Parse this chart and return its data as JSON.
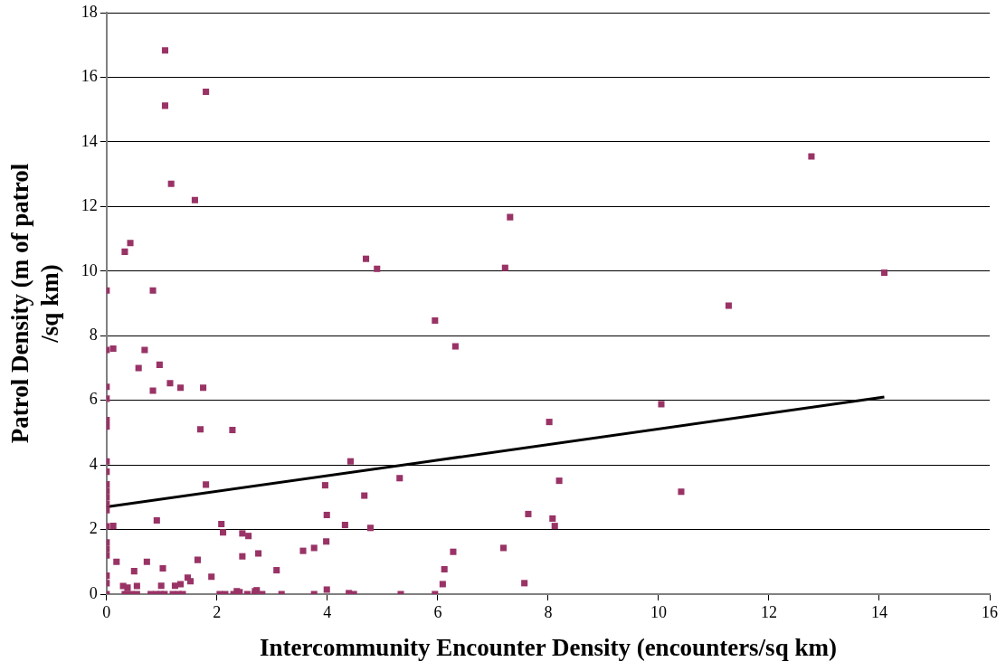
{
  "chart_data": {
    "type": "scatter",
    "xlabel": "Intercommunity Encounter Density (encounters/sq km)",
    "ylabel": "Patrol Density (m of patrol /sq km)",
    "xlim": [
      0,
      16
    ],
    "xticks": [
      0,
      2,
      4,
      6,
      8,
      10,
      12,
      14,
      16
    ],
    "ylim": [
      0,
      18
    ],
    "yticks": [
      0,
      2,
      4,
      6,
      8,
      10,
      12,
      14,
      16,
      18
    ],
    "grid": "y",
    "legend": false,
    "marker": "square",
    "series": [
      {
        "color": "#993366",
        "x": [
          1.06,
          1.06,
          1.8,
          1.17,
          1.6,
          0.33,
          0.43,
          0,
          0.84,
          0,
          0.12,
          0.69,
          0.96,
          0.58,
          1.15,
          0,
          1.34,
          0.84,
          1.75,
          0,
          0,
          0,
          1.7,
          2.28,
          0,
          0,
          1.8,
          0,
          0,
          0,
          0,
          0,
          0.12,
          0,
          0.91,
          0,
          0,
          0,
          2.08,
          2.11,
          2.46,
          2.57,
          2.46,
          2.75,
          0.18,
          0.73,
          1.65,
          0,
          1.9,
          0.5,
          1.02,
          1.47,
          1.52,
          1.34,
          3.08,
          3.56,
          3.76,
          3.98,
          3.96,
          3.99,
          4.32,
          4.42,
          4.67,
          4.78,
          5.31,
          4.7,
          4.9,
          5.95,
          6.32,
          6.28,
          6.12,
          6.09,
          7.31,
          7.22,
          7.19,
          7.64,
          7.57,
          8.02,
          8.08,
          8.12,
          8.2,
          10.05,
          10.41,
          11.27,
          12.77,
          14.09,
          3.99,
          4.39,
          4.48,
          3.76,
          3.17,
          5.33,
          5.95,
          0,
          0.33,
          0.37,
          0.45,
          0.55,
          0.8,
          0.9,
          0.98,
          1.05,
          1.2,
          1.3,
          1.38,
          2.05,
          2.15,
          2.3,
          2.55,
          2.68,
          2.82,
          0.3,
          0.38,
          0,
          0.55,
          1.24,
          0.99,
          2.36,
          2.41,
          2.69,
          2.72
        ],
        "values": [
          16.83,
          15.12,
          15.55,
          12.7,
          12.2,
          10.6,
          10.87,
          9.4,
          9.4,
          7.56,
          7.6,
          7.56,
          7.1,
          7.0,
          6.53,
          6.42,
          6.39,
          6.3,
          6.39,
          6.05,
          5.39,
          5.19,
          5.1,
          5.08,
          4.11,
          3.79,
          3.39,
          3.4,
          3.2,
          3.0,
          2.8,
          2.6,
          2.11,
          2.1,
          2.28,
          1.6,
          1.4,
          1.2,
          2.17,
          1.91,
          1.88,
          1.8,
          1.17,
          1.26,
          1.0,
          1.0,
          1.06,
          0.57,
          0.54,
          0.71,
          0.8,
          0.51,
          0.4,
          0.31,
          0.74,
          1.34,
          1.43,
          1.63,
          3.37,
          2.45,
          2.14,
          4.11,
          3.05,
          2.05,
          3.59,
          10.38,
          10.07,
          8.47,
          7.67,
          1.31,
          0.77,
          0.31,
          11.67,
          10.1,
          1.43,
          2.48,
          0.34,
          5.33,
          2.34,
          2.11,
          3.51,
          5.88,
          3.17,
          8.93,
          13.55,
          9.95,
          0.14,
          0.03,
          0,
          0,
          0,
          0,
          0,
          0,
          0,
          0,
          0,
          0,
          0,
          0,
          0,
          0,
          0,
          0,
          0,
          0,
          0,
          0,
          0,
          0,
          0,
          0.25,
          0.2,
          0.34,
          0.25,
          0.26,
          0.26,
          0.09,
          0.06,
          0.09,
          0.12
        ]
      },
      {
        "type": "line",
        "color": "#000000",
        "marker": "none",
        "line_style": "solid",
        "x": [
          0,
          14.09
        ],
        "values": [
          2.7,
          6.1
        ]
      }
    ]
  }
}
